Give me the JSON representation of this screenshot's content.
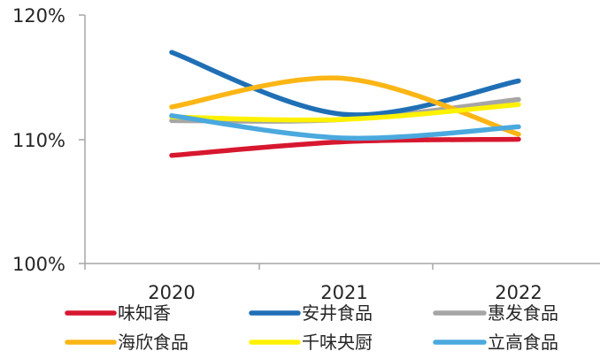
{
  "chart_data": {
    "type": "line",
    "categories": [
      "2020",
      "2021",
      "2022"
    ],
    "y_ticks": [
      "100%",
      "110%",
      "120%"
    ],
    "ylim": [
      100,
      120
    ],
    "smooth": true,
    "grid": false,
    "legend_position": "bottom",
    "series": [
      {
        "name": "味知香",
        "color": "#d7172f",
        "values": [
          108.7,
          109.8,
          110.0
        ]
      },
      {
        "name": "安井食品",
        "color": "#1f6fb5",
        "values": [
          117.0,
          112.0,
          114.7
        ]
      },
      {
        "name": "惠发食品",
        "color": "#a6a6a6",
        "values": [
          111.5,
          111.6,
          113.2
        ]
      },
      {
        "name": "海欣食品",
        "color": "#fbb616",
        "values": [
          112.6,
          114.9,
          110.4
        ]
      },
      {
        "name": "千味央厨",
        "color": "#fff200",
        "values": [
          111.8,
          111.6,
          112.8
        ]
      },
      {
        "name": "立高食品",
        "color": "#4aa9de",
        "values": [
          111.9,
          110.1,
          111.0
        ]
      }
    ]
  }
}
